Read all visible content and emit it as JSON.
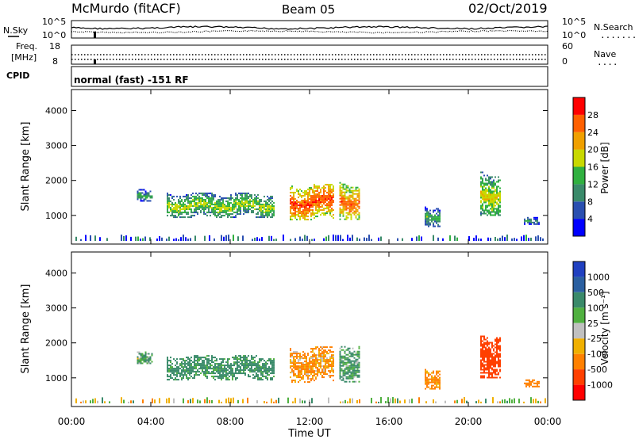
{
  "header": {
    "station": "McMurdo (fitACF)",
    "beam": "Beam 05",
    "date": "02/Oct/2019"
  },
  "noise_panel": {
    "left_label": "N.Sky",
    "left_top": "10^5",
    "left_bottom": "10^0",
    "right_label": "N.Search",
    "right_top": "10^5",
    "right_bottom": "10^0",
    "right_legend_dots": "......."
  },
  "freq_panel": {
    "left_label_1": "Freq.",
    "left_label_2": "[MHz]",
    "left_top": "18",
    "left_bottom": "8",
    "right_label": "Nave",
    "right_top": "60",
    "right_bottom": "0",
    "right_legend_dots": "...."
  },
  "cpid_panel": {
    "label": "CPID",
    "text": "normal (fast) -151 RF"
  },
  "xaxis": {
    "title": "Time UT",
    "ticks": [
      "00:00",
      "04:00",
      "08:00",
      "12:00",
      "16:00",
      "20:00",
      "00:00"
    ]
  },
  "power_panel": {
    "ylabel": "Slant Range [km]",
    "yticks": [
      "1000",
      "2000",
      "3000",
      "4000"
    ],
    "colorbar_label": "Power [dB]",
    "colorbar_ticks": [
      "4",
      "8",
      "12",
      "16",
      "20",
      "24",
      "28"
    ],
    "colors": [
      "#0000ff",
      "#2a4fb0",
      "#3a8a6a",
      "#30b040",
      "#c8d800",
      "#f0a000",
      "#ff6000",
      "#ff0000"
    ]
  },
  "velocity_panel": {
    "ylabel": "Slant Range [km]",
    "yticks": [
      "1000",
      "2000",
      "3000",
      "4000"
    ],
    "colorbar_label": "Velocity [m s⁻¹]",
    "colorbar_ticks": [
      "1000",
      "500",
      "100",
      "25",
      "-25",
      "-100",
      "-500",
      "-1000"
    ],
    "colors": [
      "#2040c0",
      "#2a5fa0",
      "#3a8a6a",
      "#50b040",
      "#c0c0c0",
      "#f0b000",
      "#ff8000",
      "#ff4000",
      "#ff0000"
    ]
  },
  "chart_data": [
    {
      "type": "heatmap",
      "title": "Power",
      "xlabel": "Time UT",
      "ylabel": "Slant Range [km]",
      "x_range_hours": [
        0,
        24
      ],
      "ylim_km": [
        180,
        4600
      ],
      "colorbar_range_db": [
        0,
        32
      ],
      "echo_regions": [
        {
          "t_start": 3.3,
          "t_end": 4.1,
          "range_km": [
            1400,
            1800
          ],
          "power_db": 8
        },
        {
          "t_start": 4.8,
          "t_end": 10.2,
          "range_km": [
            950,
            1650
          ],
          "power_db": 12
        },
        {
          "t_start": 11.0,
          "t_end": 13.2,
          "range_km": [
            900,
            1900
          ],
          "power_db": 22
        },
        {
          "t_start": 13.5,
          "t_end": 14.5,
          "range_km": [
            900,
            2000
          ],
          "power_db": 20
        },
        {
          "t_start": 17.8,
          "t_end": 18.6,
          "range_km": [
            700,
            1300
          ],
          "power_db": 8
        },
        {
          "t_start": 20.6,
          "t_end": 21.6,
          "range_km": [
            1000,
            2300
          ],
          "power_db": 14
        },
        {
          "t_start": 22.8,
          "t_end": 23.6,
          "range_km": [
            750,
            1000
          ],
          "power_db": 6
        }
      ]
    },
    {
      "type": "heatmap",
      "title": "Velocity",
      "xlabel": "Time UT",
      "ylabel": "Slant Range [km]",
      "x_range_hours": [
        0,
        24
      ],
      "ylim_km": [
        180,
        4600
      ],
      "colorbar_range_ms": [
        -1000,
        1000
      ],
      "echo_regions": [
        {
          "t_start": 3.3,
          "t_end": 4.1,
          "range_km": [
            1400,
            1800
          ],
          "velocity_ms": 100
        },
        {
          "t_start": 4.8,
          "t_end": 10.2,
          "range_km": [
            950,
            1650
          ],
          "velocity_ms": 200
        },
        {
          "t_start": 11.0,
          "t_end": 13.2,
          "range_km": [
            900,
            1900
          ],
          "velocity_ms": -150
        },
        {
          "t_start": 13.5,
          "t_end": 14.5,
          "range_km": [
            900,
            2000
          ],
          "velocity_ms": 150
        },
        {
          "t_start": 17.8,
          "t_end": 18.6,
          "range_km": [
            700,
            1300
          ],
          "velocity_ms": -200
        },
        {
          "t_start": 20.6,
          "t_end": 21.6,
          "range_km": [
            1000,
            2300
          ],
          "velocity_ms": -700
        },
        {
          "t_start": 22.8,
          "t_end": 23.6,
          "range_km": [
            750,
            1000
          ],
          "velocity_ms": -300
        }
      ]
    }
  ]
}
